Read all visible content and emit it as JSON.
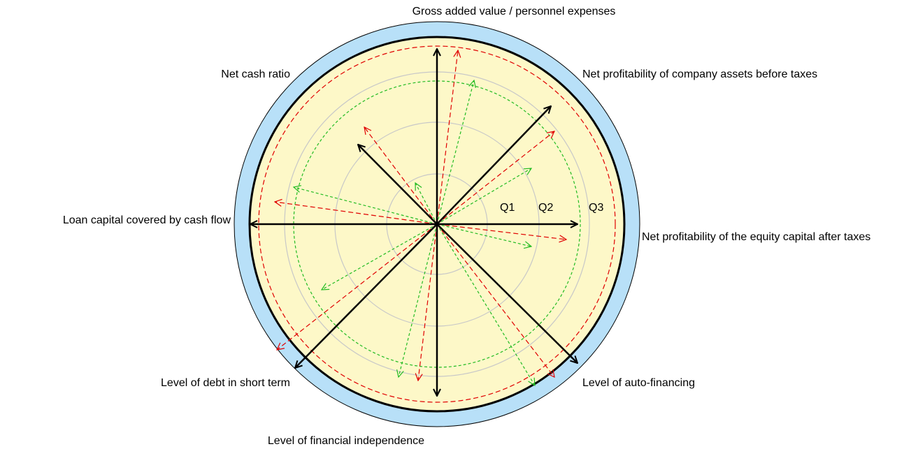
{
  "axes": [
    "Gross added value / personnel expenses",
    "Net profitability of company assets before taxes",
    "Net profitability of the equity capital after taxes",
    "Level of auto-financing",
    "Level of financial independence",
    "Level of debt in short term",
    "Loan capital covered by cash flow",
    "Net cash ratio"
  ],
  "rings": [
    "Q1",
    "Q2",
    "Q3"
  ]
}
